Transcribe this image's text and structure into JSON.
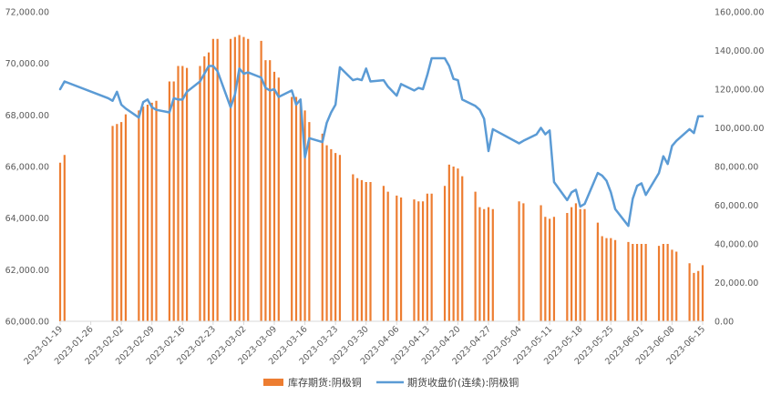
{
  "chart_data": {
    "type": "bar+line",
    "colors": {
      "bar": "#ED7D31",
      "line": "#5B9BD5",
      "axis": "#D9D9D9",
      "text": "#595959"
    },
    "legend_position": "bottom",
    "grid": false,
    "y_left": {
      "range": [
        60000,
        72000
      ],
      "ticks": [
        "60,000.00",
        "62,000.00",
        "64,000.00",
        "66,000.00",
        "68,000.00",
        "70,000.00",
        "72,000.00"
      ]
    },
    "y_right": {
      "range": [
        0,
        160000
      ],
      "ticks": [
        "0.00",
        "20,000.00",
        "40,000.00",
        "60,000.00",
        "80,000.00",
        "100,000.00",
        "120,000.00",
        "140,000.00",
        "160,000.00"
      ]
    },
    "x_range": [
      "2023-01-19",
      "2023-06-15"
    ],
    "x_tick_labels": [
      "2023-01-19",
      "2023-01-26",
      "2023-02-02",
      "2023-02-09",
      "2023-02-16",
      "2023-02-23",
      "2023-03-02",
      "2023-03-09",
      "2023-03-16",
      "2023-03-23",
      "2023-03-30",
      "2023-04-06",
      "2023-04-13",
      "2023-04-20",
      "2023-04-27",
      "2023-05-04",
      "2023-05-11",
      "2023-05-18",
      "2023-05-25",
      "2023-06-01",
      "2023-06-08",
      "2023-06-15"
    ],
    "series": [
      {
        "name": "库存期货:阴极铜",
        "type": "bar",
        "axis": "right",
        "points": [
          [
            "2023-01-19",
            82000
          ],
          [
            "2023-01-20",
            86000
          ],
          [
            "2023-01-31",
            101000
          ],
          [
            "2023-02-01",
            102000
          ],
          [
            "2023-02-02",
            103000
          ],
          [
            "2023-02-03",
            107000
          ],
          [
            "2023-02-06",
            109000
          ],
          [
            "2023-02-07",
            111000
          ],
          [
            "2023-02-08",
            112000
          ],
          [
            "2023-02-09",
            113000
          ],
          [
            "2023-02-10",
            114000
          ],
          [
            "2023-02-13",
            124000
          ],
          [
            "2023-02-14",
            124000
          ],
          [
            "2023-02-15",
            132000
          ],
          [
            "2023-02-16",
            132000
          ],
          [
            "2023-02-17",
            131000
          ],
          [
            "2023-02-20",
            132000
          ],
          [
            "2023-02-21",
            137000
          ],
          [
            "2023-02-22",
            139000
          ],
          [
            "2023-02-23",
            146000
          ],
          [
            "2023-02-24",
            146000
          ],
          [
            "2023-02-27",
            146000
          ],
          [
            "2023-02-28",
            147000
          ],
          [
            "2023-03-01",
            148000
          ],
          [
            "2023-03-02",
            147000
          ],
          [
            "2023-03-03",
            146000
          ],
          [
            "2023-03-06",
            145000
          ],
          [
            "2023-03-07",
            135000
          ],
          [
            "2023-03-08",
            135000
          ],
          [
            "2023-03-09",
            129000
          ],
          [
            "2023-03-10",
            126000
          ],
          [
            "2023-03-13",
            116000
          ],
          [
            "2023-03-14",
            116000
          ],
          [
            "2023-03-15",
            115000
          ],
          [
            "2023-03-16",
            109000
          ],
          [
            "2023-03-17",
            103000
          ],
          [
            "2023-03-20",
            97000
          ],
          [
            "2023-03-21",
            91000
          ],
          [
            "2023-03-22",
            89000
          ],
          [
            "2023-03-23",
            87000
          ],
          [
            "2023-03-24",
            86000
          ],
          [
            "2023-03-27",
            76000
          ],
          [
            "2023-03-28",
            74000
          ],
          [
            "2023-03-29",
            73000
          ],
          [
            "2023-03-30",
            72000
          ],
          [
            "2023-03-31",
            72000
          ],
          [
            "2023-04-03",
            70000
          ],
          [
            "2023-04-04",
            67000
          ],
          [
            "2023-04-06",
            65000
          ],
          [
            "2023-04-07",
            64000
          ],
          [
            "2023-04-10",
            63000
          ],
          [
            "2023-04-11",
            62000
          ],
          [
            "2023-04-12",
            62000
          ],
          [
            "2023-04-13",
            66000
          ],
          [
            "2023-04-14",
            66000
          ],
          [
            "2023-04-17",
            70000
          ],
          [
            "2023-04-18",
            81000
          ],
          [
            "2023-04-19",
            80000
          ],
          [
            "2023-04-20",
            79000
          ],
          [
            "2023-04-21",
            75000
          ],
          [
            "2023-04-24",
            67000
          ],
          [
            "2023-04-25",
            59000
          ],
          [
            "2023-04-26",
            58000
          ],
          [
            "2023-04-27",
            59000
          ],
          [
            "2023-04-28",
            58000
          ],
          [
            "2023-05-04",
            62000
          ],
          [
            "2023-05-05",
            61000
          ],
          [
            "2023-05-09",
            60000
          ],
          [
            "2023-05-10",
            54000
          ],
          [
            "2023-05-11",
            53000
          ],
          [
            "2023-05-12",
            54000
          ],
          [
            "2023-05-15",
            56000
          ],
          [
            "2023-05-16",
            59000
          ],
          [
            "2023-05-17",
            61000
          ],
          [
            "2023-05-18",
            58000
          ],
          [
            "2023-05-19",
            58000
          ],
          [
            "2023-05-22",
            51000
          ],
          [
            "2023-05-23",
            44000
          ],
          [
            "2023-05-24",
            43000
          ],
          [
            "2023-05-25",
            43000
          ],
          [
            "2023-05-26",
            42000
          ],
          [
            "2023-05-29",
            41000
          ],
          [
            "2023-05-30",
            40000
          ],
          [
            "2023-05-31",
            40000
          ],
          [
            "2023-06-01",
            40000
          ],
          [
            "2023-06-02",
            40000
          ],
          [
            "2023-06-05",
            39000
          ],
          [
            "2023-06-06",
            40000
          ],
          [
            "2023-06-07",
            40000
          ],
          [
            "2023-06-08",
            37000
          ],
          [
            "2023-06-09",
            36000
          ],
          [
            "2023-06-12",
            30000
          ],
          [
            "2023-06-13",
            25000
          ],
          [
            "2023-06-14",
            26000
          ],
          [
            "2023-06-15",
            29000
          ]
        ]
      },
      {
        "name": "期货收盘价(连续):阴极铜",
        "type": "line",
        "axis": "left",
        "points": [
          [
            "2023-01-19",
            69000
          ],
          [
            "2023-01-20",
            69300
          ],
          [
            "2023-01-30",
            68650
          ],
          [
            "2023-01-31",
            68550
          ],
          [
            "2023-02-01",
            68900
          ],
          [
            "2023-02-02",
            68400
          ],
          [
            "2023-02-03",
            68250
          ],
          [
            "2023-02-06",
            67900
          ],
          [
            "2023-02-07",
            68500
          ],
          [
            "2023-02-08",
            68600
          ],
          [
            "2023-02-09",
            68300
          ],
          [
            "2023-02-10",
            68200
          ],
          [
            "2023-02-13",
            68100
          ],
          [
            "2023-02-14",
            68650
          ],
          [
            "2023-02-15",
            68600
          ],
          [
            "2023-02-16",
            68600
          ],
          [
            "2023-02-17",
            68900
          ],
          [
            "2023-02-20",
            69300
          ],
          [
            "2023-02-21",
            69600
          ],
          [
            "2023-02-22",
            69900
          ],
          [
            "2023-02-23",
            69900
          ],
          [
            "2023-02-24",
            69700
          ],
          [
            "2023-02-27",
            68300
          ],
          [
            "2023-02-28",
            68800
          ],
          [
            "2023-03-01",
            69800
          ],
          [
            "2023-03-02",
            69600
          ],
          [
            "2023-03-03",
            69650
          ],
          [
            "2023-03-06",
            69450
          ],
          [
            "2023-03-07",
            69050
          ],
          [
            "2023-03-08",
            68950
          ],
          [
            "2023-03-09",
            69000
          ],
          [
            "2023-03-10",
            68700
          ],
          [
            "2023-03-13",
            68950
          ],
          [
            "2023-03-14",
            68400
          ],
          [
            "2023-03-15",
            68600
          ],
          [
            "2023-03-16",
            66350
          ],
          [
            "2023-03-17",
            67100
          ],
          [
            "2023-03-20",
            66950
          ],
          [
            "2023-03-21",
            67700
          ],
          [
            "2023-03-22",
            68100
          ],
          [
            "2023-03-23",
            68400
          ],
          [
            "2023-03-24",
            69850
          ],
          [
            "2023-03-27",
            69350
          ],
          [
            "2023-03-28",
            69400
          ],
          [
            "2023-03-29",
            69350
          ],
          [
            "2023-03-30",
            69800
          ],
          [
            "2023-03-31",
            69300
          ],
          [
            "2023-04-03",
            69350
          ],
          [
            "2023-04-04",
            69100
          ],
          [
            "2023-04-06",
            68750
          ],
          [
            "2023-04-07",
            69200
          ],
          [
            "2023-04-10",
            68950
          ],
          [
            "2023-04-11",
            69050
          ],
          [
            "2023-04-12",
            69000
          ],
          [
            "2023-04-13",
            69550
          ],
          [
            "2023-04-14",
            70200
          ],
          [
            "2023-04-17",
            70200
          ],
          [
            "2023-04-18",
            69900
          ],
          [
            "2023-04-19",
            69400
          ],
          [
            "2023-04-20",
            69350
          ],
          [
            "2023-04-21",
            68600
          ],
          [
            "2023-04-24",
            68350
          ],
          [
            "2023-04-25",
            68200
          ],
          [
            "2023-04-26",
            67850
          ],
          [
            "2023-04-27",
            66600
          ],
          [
            "2023-04-28",
            67450
          ],
          [
            "2023-05-04",
            66900
          ],
          [
            "2023-05-05",
            67000
          ],
          [
            "2023-05-08",
            67250
          ],
          [
            "2023-05-09",
            67500
          ],
          [
            "2023-05-10",
            67250
          ],
          [
            "2023-05-11",
            67400
          ],
          [
            "2023-05-12",
            65400
          ],
          [
            "2023-05-15",
            64700
          ],
          [
            "2023-05-16",
            65000
          ],
          [
            "2023-05-17",
            65100
          ],
          [
            "2023-05-18",
            64450
          ],
          [
            "2023-05-19",
            64550
          ],
          [
            "2023-05-22",
            65750
          ],
          [
            "2023-05-23",
            65650
          ],
          [
            "2023-05-24",
            65450
          ],
          [
            "2023-05-25",
            65000
          ],
          [
            "2023-05-26",
            64350
          ],
          [
            "2023-05-29",
            63700
          ],
          [
            "2023-05-30",
            64750
          ],
          [
            "2023-05-31",
            65250
          ],
          [
            "2023-06-01",
            65350
          ],
          [
            "2023-06-02",
            64900
          ],
          [
            "2023-06-05",
            65750
          ],
          [
            "2023-06-06",
            66400
          ],
          [
            "2023-06-07",
            66100
          ],
          [
            "2023-06-08",
            66800
          ],
          [
            "2023-06-09",
            67000
          ],
          [
            "2023-06-12",
            67450
          ],
          [
            "2023-06-13",
            67300
          ],
          [
            "2023-06-14",
            67950
          ],
          [
            "2023-06-15",
            67950
          ]
        ]
      }
    ]
  }
}
